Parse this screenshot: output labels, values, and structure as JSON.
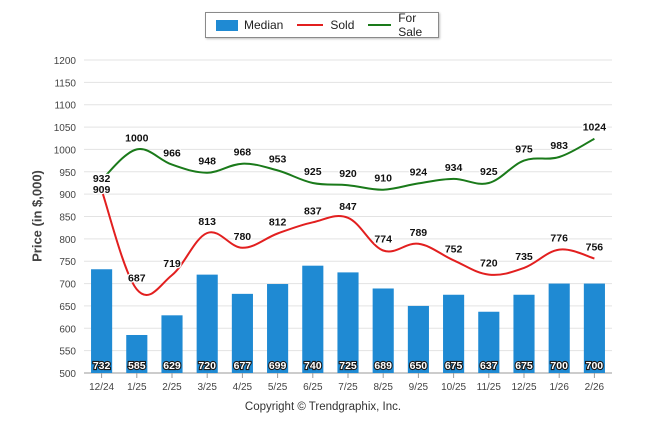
{
  "chart_data": {
    "type": "bar",
    "title": "",
    "xlabel": "",
    "ylabel": "Price (in $,000)",
    "ylim": [
      500,
      1200
    ],
    "yticks": [
      500,
      550,
      600,
      650,
      700,
      750,
      800,
      850,
      900,
      950,
      1000,
      1050,
      1100,
      1150,
      1200
    ],
    "grid": true,
    "legend_position": "top-center",
    "categories": [
      "12/24",
      "1/25",
      "2/25",
      "3/25",
      "4/25",
      "5/25",
      "6/25",
      "7/25",
      "8/25",
      "9/25",
      "10/25",
      "11/25",
      "12/25",
      "1/26",
      "2/26"
    ],
    "series": [
      {
        "name": "Median",
        "kind": "bar",
        "color": "#1f8ad3",
        "values": [
          732,
          585,
          629,
          720,
          677,
          699,
          740,
          725,
          689,
          650,
          675,
          637,
          675,
          700,
          700
        ]
      },
      {
        "name": "Sold",
        "kind": "line",
        "color": "#e21f1f",
        "values": [
          909,
          687,
          719,
          813,
          780,
          812,
          837,
          847,
          774,
          789,
          752,
          720,
          735,
          776,
          756
        ]
      },
      {
        "name": "For Sale",
        "kind": "line",
        "color": "#1a7a1a",
        "values": [
          932,
          1000,
          966,
          948,
          968,
          953,
          925,
          920,
          910,
          924,
          934,
          925,
          975,
          983,
          1024
        ]
      }
    ]
  },
  "copyright": "Copyright © Trendgraphix, Inc."
}
